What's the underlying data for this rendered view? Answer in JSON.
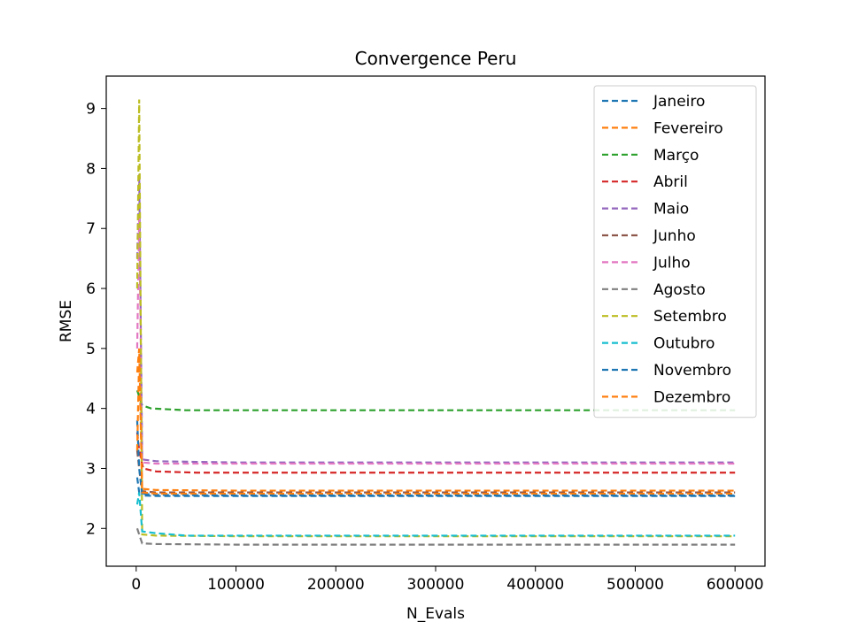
{
  "chart_data": {
    "type": "line",
    "title": "Convergence Peru",
    "xlabel": "N_Evals",
    "ylabel": "RMSE",
    "xlim": [
      -30000,
      630000
    ],
    "ylim": [
      1.37,
      9.54
    ],
    "xticks": [
      0,
      100000,
      200000,
      300000,
      400000,
      500000,
      600000
    ],
    "yticks": [
      2,
      3,
      4,
      5,
      6,
      7,
      8,
      9
    ],
    "grid": false,
    "legend_position": "top-right",
    "line_style": "dashed",
    "series": [
      {
        "name": "Janeiro",
        "color": "#1f77b4",
        "points": [
          [
            1000,
            2.85
          ],
          [
            3000,
            2.6
          ],
          [
            6000,
            2.58
          ],
          [
            20000,
            2.56
          ],
          [
            100000,
            2.55
          ],
          [
            600000,
            2.55
          ]
        ]
      },
      {
        "name": "Fevereiro",
        "color": "#ff7f0e",
        "points": [
          [
            1000,
            4.6
          ],
          [
            3000,
            5.0
          ],
          [
            6000,
            2.66
          ],
          [
            20000,
            2.64
          ],
          [
            100000,
            2.63
          ],
          [
            600000,
            2.63
          ]
        ]
      },
      {
        "name": "Março",
        "color": "#2ca02c",
        "points": [
          [
            1000,
            4.3
          ],
          [
            3000,
            4.2
          ],
          [
            6000,
            4.05
          ],
          [
            15000,
            4.0
          ],
          [
            50000,
            3.97
          ],
          [
            600000,
            3.97
          ]
        ]
      },
      {
        "name": "Abril",
        "color": "#d62728",
        "points": [
          [
            1000,
            3.6
          ],
          [
            3000,
            3.3
          ],
          [
            7000,
            3.0
          ],
          [
            20000,
            2.95
          ],
          [
            60000,
            2.93
          ],
          [
            600000,
            2.93
          ]
        ]
      },
      {
        "name": "Maio",
        "color": "#9467bd",
        "points": [
          [
            1000,
            6.5
          ],
          [
            3000,
            7.9
          ],
          [
            6000,
            3.15
          ],
          [
            20000,
            3.12
          ],
          [
            100000,
            3.1
          ],
          [
            600000,
            3.1
          ]
        ]
      },
      {
        "name": "Junho",
        "color": "#8c564b",
        "points": [
          [
            1000,
            3.3
          ],
          [
            3000,
            3.0
          ],
          [
            6000,
            2.62
          ],
          [
            20000,
            2.6
          ],
          [
            100000,
            2.6
          ],
          [
            600000,
            2.6
          ]
        ]
      },
      {
        "name": "Julho",
        "color": "#e377c2",
        "points": [
          [
            1000,
            5.0
          ],
          [
            3000,
            7.2
          ],
          [
            6000,
            3.1
          ],
          [
            20000,
            3.08
          ],
          [
            100000,
            3.08
          ],
          [
            600000,
            3.08
          ]
        ]
      },
      {
        "name": "Agosto",
        "color": "#7f7f7f",
        "points": [
          [
            1000,
            2.0
          ],
          [
            3000,
            1.9
          ],
          [
            6000,
            1.75
          ],
          [
            20000,
            1.74
          ],
          [
            100000,
            1.73
          ],
          [
            600000,
            1.73
          ]
        ]
      },
      {
        "name": "Setembro",
        "color": "#bcbd22",
        "points": [
          [
            1000,
            6.0
          ],
          [
            3000,
            9.15
          ],
          [
            6000,
            1.9
          ],
          [
            20000,
            1.88
          ],
          [
            100000,
            1.87
          ],
          [
            600000,
            1.87
          ]
        ]
      },
      {
        "name": "Outubro",
        "color": "#17becf",
        "points": [
          [
            1000,
            2.4
          ],
          [
            3000,
            2.6
          ],
          [
            6000,
            1.95
          ],
          [
            20000,
            1.92
          ],
          [
            50000,
            1.88
          ],
          [
            600000,
            1.88
          ]
        ]
      },
      {
        "name": "Novembro",
        "color": "#1f77b4",
        "points": [
          [
            1000,
            3.8
          ],
          [
            3000,
            3.0
          ],
          [
            6000,
            2.55
          ],
          [
            20000,
            2.54
          ],
          [
            100000,
            2.54
          ],
          [
            600000,
            2.54
          ]
        ]
      },
      {
        "name": "Dezembro",
        "color": "#ff7f0e",
        "points": [
          [
            1000,
            3.3
          ],
          [
            3000,
            4.9
          ],
          [
            6000,
            2.6
          ],
          [
            20000,
            2.58
          ],
          [
            100000,
            2.58
          ],
          [
            600000,
            2.58
          ]
        ]
      }
    ]
  }
}
